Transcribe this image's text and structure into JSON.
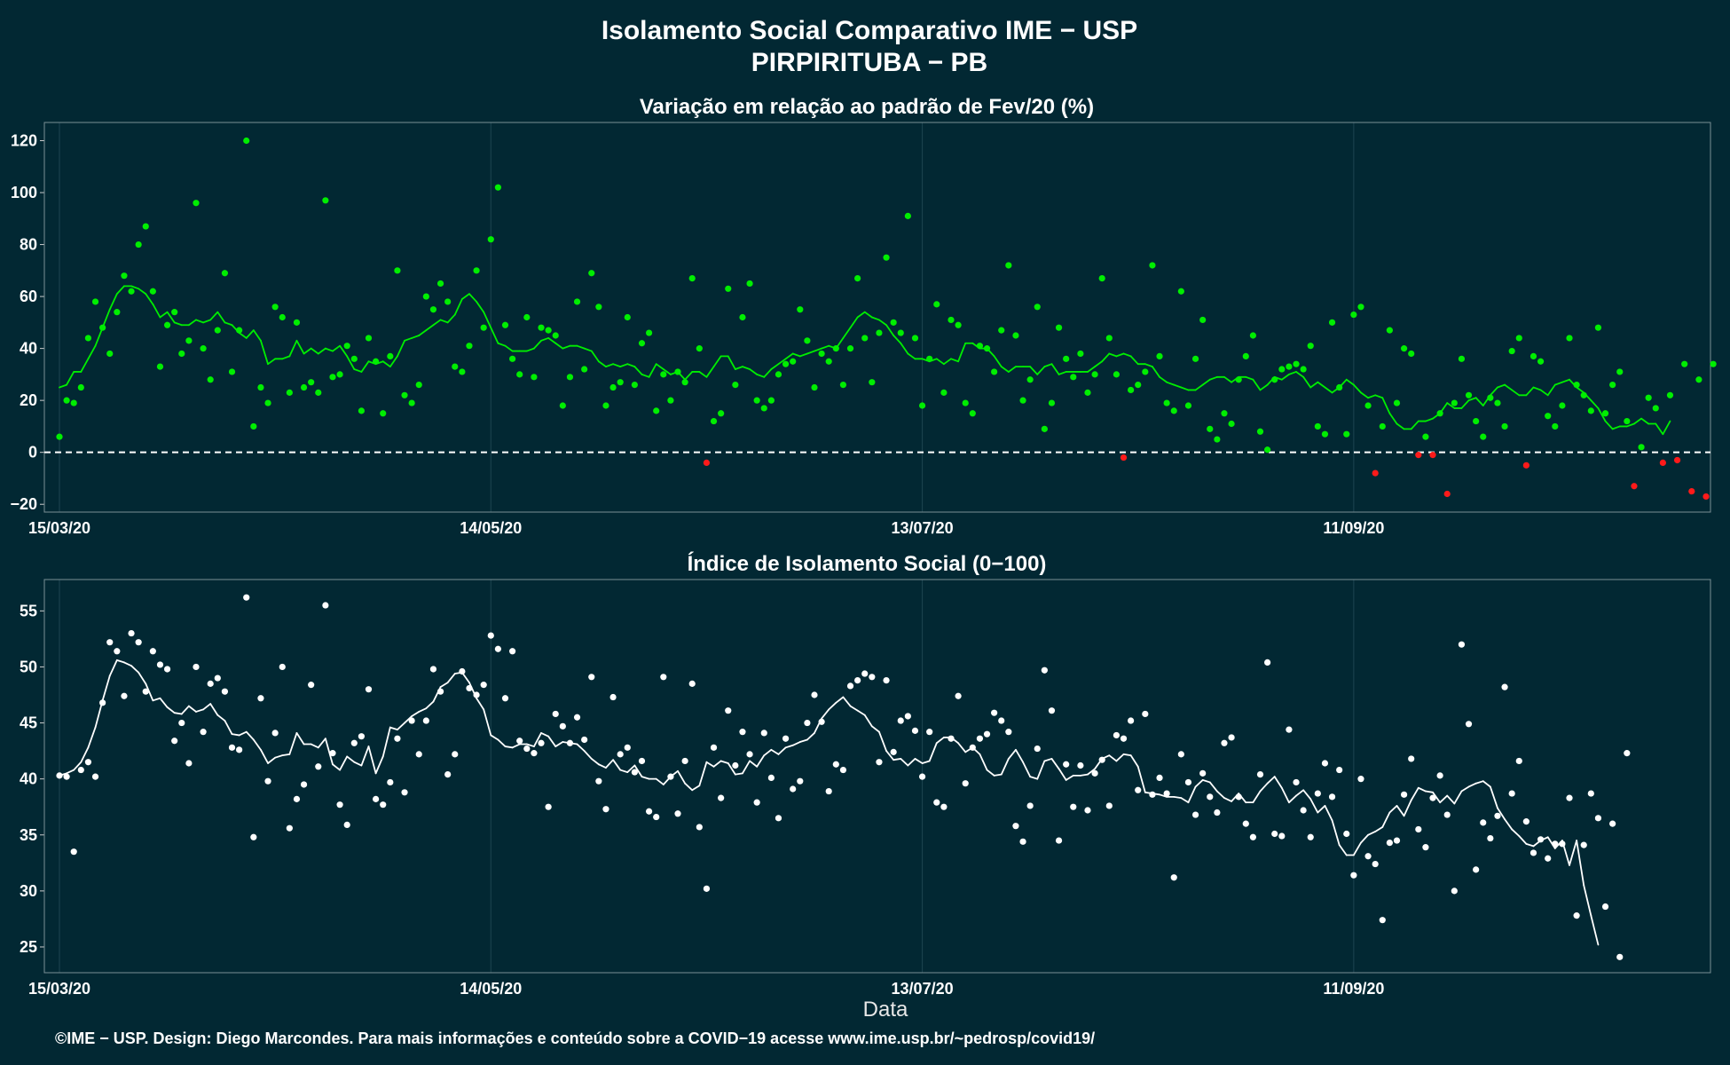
{
  "page": {
    "title": "Isolamento Social Comparativo IME − USP",
    "subtitle": "PIRPIRITUBA − PB",
    "footer": "©IME − USP. Design: Diego Marcondes. Para mais informações e conteúdo sobre a COVID−19 acesse www.ime.usp.br/~pedrosp/covid19/"
  },
  "colors": {
    "background": "#022833",
    "positive": "#00ee00",
    "negative": "#ff1a1a",
    "index_series": "#ffffff",
    "zero_line": "#ffffff"
  },
  "chart_data": [
    {
      "type": "scatter",
      "title": "Variação em relação ao padrão de Fev/20 (%)",
      "xlabel": "",
      "ylabel": "",
      "start_date": "2020-03-15",
      "xlim_days": [
        0,
        229
      ],
      "x_tick_labels": [
        "15/03/20",
        "14/05/20",
        "13/07/20",
        "11/09/20"
      ],
      "x_tick_days": [
        0,
        60,
        120,
        180
      ],
      "y_ticks": [
        -20,
        0,
        20,
        40,
        60,
        80,
        100,
        120
      ],
      "ylim": [
        -23,
        127
      ],
      "reference_line": 0,
      "grid": "vertical",
      "series": [
        {
          "name": "",
          "kind": "points",
          "values": [
            6,
            20,
            19,
            25,
            44,
            58,
            48,
            38,
            54,
            68,
            62,
            80,
            87,
            62,
            33,
            49,
            54,
            38,
            43,
            96,
            40,
            28,
            47,
            69,
            31,
            47,
            120,
            10,
            25,
            19,
            56,
            52,
            23,
            50,
            25,
            27,
            23,
            97,
            29,
            30,
            41,
            36,
            16,
            44,
            35,
            15,
            37,
            70,
            22,
            19,
            26,
            60,
            55,
            65,
            58,
            33,
            31,
            41,
            70,
            48,
            82,
            102,
            49,
            36,
            30,
            52,
            29,
            48,
            47,
            45,
            18,
            29,
            58,
            32,
            69,
            56,
            18,
            25,
            27,
            52,
            26,
            42,
            46,
            16,
            30,
            20,
            31,
            27,
            67,
            40,
            -4,
            12,
            15,
            63,
            26,
            52,
            65,
            20,
            17,
            20,
            30,
            34,
            35,
            55,
            43,
            25,
            38,
            35,
            40,
            26,
            40,
            67,
            44,
            27,
            46,
            75,
            50,
            46,
            91,
            44,
            18,
            36,
            57,
            23,
            51,
            49,
            19,
            15,
            41,
            40,
            31,
            47,
            72,
            45,
            20,
            28,
            56,
            9,
            19,
            48,
            36,
            29,
            38,
            23,
            30,
            67,
            44,
            30,
            -2,
            24,
            26,
            31,
            72,
            37,
            19,
            16,
            62,
            18,
            36,
            51,
            9,
            5,
            15,
            11,
            28,
            37,
            45,
            8,
            1,
            28,
            32,
            33,
            34,
            32,
            41,
            10,
            7,
            50,
            25,
            7,
            53,
            56,
            18,
            -8,
            10,
            47,
            19,
            40,
            38,
            -1,
            6,
            -1,
            15,
            -16,
            19,
            36,
            22,
            12,
            6,
            21,
            19,
            10,
            39,
            44,
            -5,
            37,
            35,
            14,
            10,
            18,
            44,
            26,
            22,
            16,
            48,
            15,
            26,
            31,
            12,
            -13,
            2,
            21,
            17,
            -4,
            22,
            -3,
            34,
            -15,
            28,
            -17,
            34
          ],
          "color_rule": "green when value >= 0, red when value < 0"
        },
        {
          "name": "",
          "kind": "line",
          "values": [
            25,
            26,
            31,
            31,
            36,
            41,
            48,
            55,
            61,
            64,
            64,
            63,
            61,
            57,
            52,
            54,
            50,
            49,
            49,
            51,
            50,
            51,
            54,
            50,
            49,
            46,
            44,
            47,
            43,
            34,
            36,
            36,
            37,
            43,
            38,
            40,
            38,
            40,
            39,
            41,
            37,
            32,
            31,
            35,
            34,
            35,
            33,
            37,
            43,
            44,
            45,
            47,
            49,
            51,
            50,
            53,
            59,
            61,
            58,
            54,
            48,
            42,
            41,
            39,
            39,
            39,
            40,
            43,
            44,
            42,
            40,
            41,
            41,
            40,
            39,
            35,
            33,
            34,
            33,
            34,
            33,
            30,
            29,
            34,
            32,
            30,
            31,
            28,
            31,
            31,
            29,
            33,
            37,
            37,
            32,
            33,
            32,
            30,
            29,
            32,
            34,
            36,
            38,
            37,
            38,
            39,
            40,
            41,
            40,
            44,
            48,
            52,
            54,
            52,
            51,
            49,
            45,
            42,
            38,
            36,
            36,
            35,
            36,
            34,
            36,
            35,
            42,
            42,
            40,
            40,
            37,
            33,
            31,
            33,
            33,
            33,
            30,
            33,
            34,
            30,
            31,
            31,
            31,
            31,
            33,
            35,
            38,
            37,
            38,
            37,
            34,
            34,
            33,
            29,
            27,
            26,
            25,
            24,
            24,
            26,
            28,
            29,
            29,
            27,
            29,
            29,
            28,
            24,
            26,
            29,
            28,
            30,
            31,
            29,
            25,
            27,
            25,
            23,
            25,
            28,
            26,
            23,
            21,
            22,
            21,
            15,
            11,
            9,
            9,
            12,
            12,
            13,
            15,
            19,
            17,
            17,
            20,
            21,
            18,
            22,
            25,
            26,
            24,
            22,
            22,
            25,
            24,
            22,
            26,
            27,
            28,
            25,
            23,
            20,
            17,
            12,
            9,
            10,
            10,
            11,
            13,
            11,
            11,
            7,
            12
          ],
          "color_rule": "green when value >= 0, red when value < 0"
        }
      ]
    },
    {
      "type": "scatter",
      "title": "Índice de Isolamento Social (0−100)",
      "xlabel": "Data",
      "ylabel": "",
      "start_date": "2020-03-15",
      "xlim_days": [
        0,
        229
      ],
      "x_tick_labels": [
        "15/03/20",
        "14/05/20",
        "13/07/20",
        "11/09/20"
      ],
      "x_tick_days": [
        0,
        60,
        120,
        180
      ],
      "y_ticks": [
        25,
        30,
        35,
        40,
        45,
        50,
        55
      ],
      "ylim": [
        22.7,
        57.8
      ],
      "grid": "vertical",
      "series": [
        {
          "name": "",
          "kind": "points",
          "values": [
            40.3,
            40.2,
            33.5,
            40.8,
            41.5,
            40.2,
            46.8,
            52.2,
            51.4,
            47.4,
            53,
            52.2,
            47.8,
            51.4,
            50.2,
            49.8,
            43.4,
            45,
            41.4,
            50,
            44.2,
            48.5,
            49,
            47.8,
            42.8,
            42.6,
            56.2,
            34.8,
            47.2,
            39.8,
            44.1,
            50,
            35.6,
            38.2,
            39.5,
            48.4,
            41.1,
            55.5,
            42.3,
            37.7,
            35.9,
            43.2,
            43.8,
            48,
            38.2,
            37.7,
            39.7,
            43.6,
            38.8,
            45.2,
            42.2,
            45.2,
            49.8,
            47.8,
            40.4,
            42.2,
            49.6,
            48.1,
            47.5,
            48.4,
            52.8,
            51.6,
            47.2,
            51.4,
            43.4,
            42.7,
            42.3,
            43.2,
            37.5,
            45.8,
            44.7,
            43.2,
            45.5,
            43.5,
            49.1,
            39.8,
            37.3,
            47.3,
            42.2,
            42.8,
            40.6,
            41.6,
            37.1,
            36.6,
            49.1,
            40.2,
            36.9,
            41.6,
            48.5,
            35.7,
            30.2,
            42.8,
            38.3,
            46.1,
            41.2,
            44.2,
            42.2,
            37.9,
            44.1,
            40.1,
            36.5,
            43.6,
            39.1,
            39.8,
            45,
            47.5,
            45.1,
            38.9,
            41.3,
            40.8,
            48.3,
            48.8,
            49.4,
            49.1,
            41.5,
            48.8,
            42.4,
            45.2,
            45.6,
            44.3,
            40.2,
            44.2,
            37.9,
            37.5,
            43.6,
            47.4,
            39.6,
            42.8,
            43.6,
            44,
            45.9,
            45.2,
            44.2,
            35.8,
            34.4,
            37.6,
            42.7,
            49.7,
            46.1,
            34.5,
            41.3,
            37.5,
            41.2,
            37.2,
            40.5,
            41.7,
            37.6,
            43.9,
            43.6,
            45.2,
            39,
            45.8,
            38.6,
            40.1,
            38.7,
            31.2,
            42.2,
            39.7,
            36.8,
            40.5,
            38.4,
            37,
            43.2,
            43.7,
            38.4,
            36,
            34.8,
            40.4,
            50.4,
            35.1,
            34.9,
            44.4,
            39.7,
            37.2,
            34.8,
            38.7,
            41.4,
            38.4,
            40.8,
            35.1,
            31.4,
            40.0,
            33.1,
            32.4,
            27.4,
            34.3,
            34.5,
            38.6,
            41.8,
            35.5,
            33.9,
            38.3,
            40.3,
            36.8,
            30.0,
            52.0,
            44.9,
            31.9,
            36.1,
            34.7,
            36.7,
            48.2,
            38.7,
            41.6,
            36.2,
            33.4,
            34.6,
            32.9,
            34.2,
            34.2,
            38.3,
            27.8,
            34.1,
            38.7,
            36.5,
            28.6,
            36.0,
            24.1,
            42.3
          ],
          "color_rule": "all white"
        },
        {
          "name": "",
          "kind": "line",
          "values": [
            40.3,
            40.5,
            40.8,
            41.5,
            42.8,
            44.6,
            47,
            49.2,
            50.6,
            50.4,
            50.1,
            49.5,
            48.5,
            47,
            47.2,
            46.4,
            45.9,
            45.8,
            46.5,
            46,
            46.2,
            46.7,
            45.7,
            45.2,
            44,
            43.9,
            44.2,
            43.5,
            42.6,
            41.4,
            41.9,
            42.1,
            42.2,
            44.1,
            43.1,
            43.1,
            42.8,
            43.6,
            41.3,
            40.8,
            42,
            41.5,
            41.2,
            42.9,
            40.5,
            42,
            44.6,
            44.4,
            45,
            45.6,
            46,
            46.3,
            46.9,
            48.2,
            48.6,
            49.4,
            49.5,
            48.6,
            47.2,
            46.2,
            43.9,
            43.5,
            42.9,
            42.8,
            43.1,
            43.1,
            42.9,
            44.1,
            43.8,
            42.9,
            43.3,
            43.2,
            43.1,
            42.5,
            41.8,
            41.3,
            41,
            41.7,
            40.8,
            40.6,
            41.2,
            40.2,
            40,
            40,
            39.5,
            40.2,
            40.7,
            39.6,
            39,
            39.4,
            41.5,
            41.1,
            41.6,
            41.4,
            40.4,
            40.5,
            41.6,
            41.1,
            42.1,
            42.6,
            42.2,
            42.8,
            43,
            43.3,
            43.5,
            44.1,
            45.4,
            46.2,
            46.8,
            47.3,
            46.5,
            46.1,
            45.7,
            44.7,
            44.2,
            42.5,
            41.7,
            41.8,
            41.2,
            41.8,
            41.4,
            41.6,
            43.2,
            43.7,
            43.7,
            43.2,
            42.4,
            42.8,
            42.2,
            40.8,
            40.3,
            40.4,
            41.8,
            42.6,
            41.5,
            40.2,
            40,
            41.6,
            41.8,
            40.9,
            39.9,
            40.3,
            40.3,
            40.4,
            40.9,
            41.8,
            42.1,
            41.6,
            42.2,
            42.1,
            41.1,
            38.8,
            38.7,
            38.6,
            38.4,
            38.4,
            38.3,
            37.9,
            39.3,
            39.9,
            39.7,
            38.9,
            38.3,
            38,
            38.7,
            37.9,
            37.9,
            38.9,
            39.6,
            40.2,
            39.2,
            37.9,
            38.5,
            39,
            38.2,
            37,
            37.6,
            36.3,
            34.1,
            33.2,
            33.2,
            34.3,
            35,
            35.3,
            35.7,
            37,
            37.6,
            36.7,
            38.1,
            39.2,
            38.9,
            38.8,
            37.9,
            38.5,
            37.8,
            38.9,
            39.3,
            39.6,
            39.8,
            39.3,
            37.4,
            36.4,
            35.5,
            34.9,
            34.2,
            34,
            34.5,
            34.8,
            33.8,
            34.5,
            32.3,
            34.5,
            30.5,
            27.8,
            25.2
          ],
          "color_rule": "all white"
        }
      ]
    }
  ]
}
